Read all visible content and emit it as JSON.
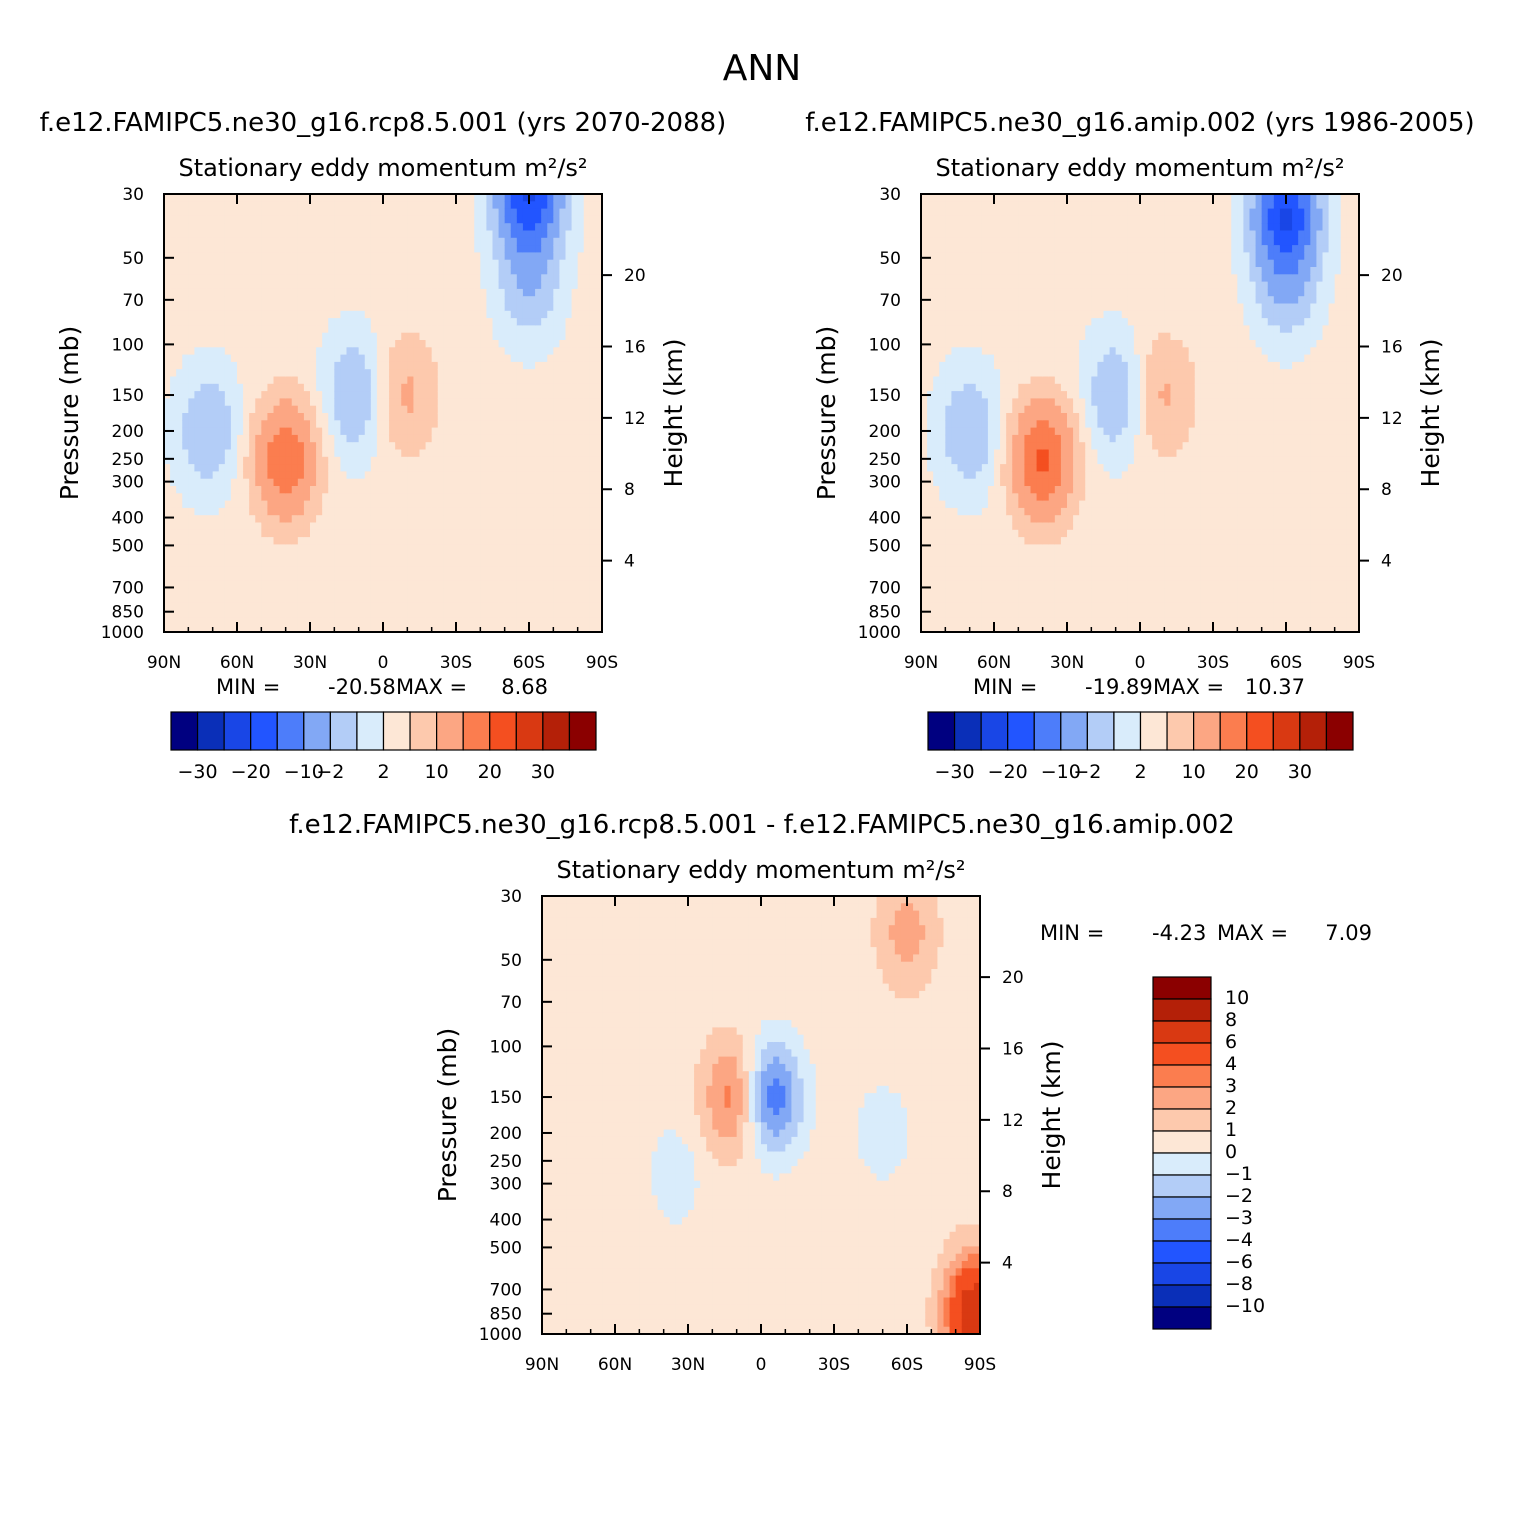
{
  "figure_title": "ANN",
  "chart_data": [
    {
      "type": "contour",
      "title": "f.e12.FAMIPC5.ne30_g16.rcp8.5.001 (yrs 2070-2088)",
      "subtitle": "Stationary eddy momentum",
      "units": "m²/s²",
      "xlabel": "",
      "ylabel": "Pressure (mb)",
      "y2label": "Height (km)",
      "x_ticks": [
        "90N",
        "60N",
        "30N",
        "0",
        "30S",
        "60S",
        "90S"
      ],
      "y_ticks": [
        30,
        50,
        70,
        100,
        150,
        200,
        250,
        300,
        400,
        500,
        700,
        850,
        1000
      ],
      "y2_ticks": [
        4,
        8,
        12,
        16,
        20
      ],
      "y_scale": "log",
      "ylim": [
        1000,
        30
      ],
      "min_label": "MIN =",
      "min_value": "-20.58",
      "max_label": "MAX =",
      "max_value": "8.68",
      "levels": [
        -30,
        -25,
        -20,
        -15,
        -10,
        -5,
        -2,
        0,
        2,
        5,
        10,
        15,
        20,
        25,
        30
      ],
      "colorbar_labels": [
        "-30",
        "-20",
        "-10",
        "-2",
        "2",
        "10",
        "20",
        "30"
      ],
      "colorbar_orientation": "horizontal",
      "features": [
        {
          "lat": 72,
          "p": 200,
          "value": -5
        },
        {
          "lat": 40,
          "p": 260,
          "value": 5
        },
        {
          "lat": 40,
          "p": 250,
          "value": 8.68
        },
        {
          "lat": 12,
          "p": 150,
          "value": -5
        },
        {
          "lat": -10,
          "p": 150,
          "value": 5
        },
        {
          "lat": -60,
          "p": 60,
          "value": -5
        },
        {
          "lat": -60,
          "p": 30,
          "value": -20.58
        }
      ]
    },
    {
      "type": "contour",
      "title": "f.e12.FAMIPC5.ne30_g16.amip.002 (yrs 1986-2005)",
      "subtitle": "Stationary eddy momentum",
      "units": "m²/s²",
      "xlabel": "",
      "ylabel": "Pressure (mb)",
      "y2label": "Height (km)",
      "x_ticks": [
        "90N",
        "60N",
        "30N",
        "0",
        "30S",
        "60S",
        "90S"
      ],
      "y_ticks": [
        30,
        50,
        70,
        100,
        150,
        200,
        250,
        300,
        400,
        500,
        700,
        850,
        1000
      ],
      "y2_ticks": [
        4,
        8,
        12,
        16,
        20
      ],
      "y_scale": "log",
      "ylim": [
        1000,
        30
      ],
      "min_label": "MIN =",
      "min_value": "-19.89",
      "max_label": "MAX =",
      "max_value": "10.37",
      "levels": [
        -30,
        -25,
        -20,
        -15,
        -10,
        -5,
        -2,
        0,
        2,
        5,
        10,
        15,
        20,
        25,
        30
      ],
      "colorbar_labels": [
        "-30",
        "-20",
        "-10",
        "-2",
        "2",
        "10",
        "20",
        "30"
      ],
      "colorbar_orientation": "horizontal",
      "features": [
        {
          "lat": 70,
          "p": 200,
          "value": -5
        },
        {
          "lat": 40,
          "p": 260,
          "value": 5
        },
        {
          "lat": 40,
          "p": 250,
          "value": 10.37
        },
        {
          "lat": 10,
          "p": 150,
          "value": -5
        },
        {
          "lat": -10,
          "p": 150,
          "value": 5
        },
        {
          "lat": -60,
          "p": 60,
          "value": -5
        },
        {
          "lat": -60,
          "p": 35,
          "value": -19.89
        }
      ]
    },
    {
      "type": "contour",
      "title": "f.e12.FAMIPC5.ne30_g16.rcp8.5.001 - f.e12.FAMIPC5.ne30_g16.amip.002",
      "subtitle": "Stationary eddy momentum",
      "units": "m²/s²",
      "xlabel": "",
      "ylabel": "Pressure (mb)",
      "y2label": "Height (km)",
      "x_ticks": [
        "90N",
        "60N",
        "30N",
        "0",
        "30S",
        "60S",
        "90S"
      ],
      "y_ticks": [
        30,
        50,
        70,
        100,
        150,
        200,
        250,
        300,
        400,
        500,
        700,
        850,
        1000
      ],
      "y2_ticks": [
        4,
        8,
        12,
        16,
        20
      ],
      "y_scale": "log",
      "ylim": [
        1000,
        30
      ],
      "min_label": "MIN =",
      "min_value": "-4.23",
      "max_label": "MAX =",
      "max_value": "7.09",
      "levels": [
        -10,
        -8,
        -6,
        -4,
        -3,
        -2,
        -1,
        0,
        1,
        2,
        3,
        4,
        6,
        8,
        10
      ],
      "colorbar_labels": [
        "10",
        "8",
        "6",
        "4",
        "3",
        "2",
        "1",
        "0",
        "-1",
        "-2",
        "-3",
        "-4",
        "-6",
        "-8",
        "-10"
      ],
      "colorbar_orientation": "vertical",
      "features": [
        {
          "lat": 12,
          "p": 150,
          "value": 3
        },
        {
          "lat": -5,
          "p": 150,
          "value": -4.23
        },
        {
          "lat": -60,
          "p": 40,
          "value": 2
        },
        {
          "lat": -50,
          "p": 200,
          "value": -1
        },
        {
          "lat": 35,
          "p": 280,
          "value": -1
        },
        {
          "lat": -88,
          "p": 850,
          "value": 7.09
        }
      ]
    }
  ],
  "colors": {
    "palette": [
      "#000080",
      "#0a2fb8",
      "#1946e6",
      "#2255ff",
      "#4d7dfa",
      "#82a8f5",
      "#b3cdf7",
      "#d9ecfb",
      "#fde7d6",
      "#fdc9ad",
      "#fca683",
      "#fb7d4f",
      "#f44f20",
      "#d93912",
      "#b42008",
      "#8b0000"
    ]
  }
}
